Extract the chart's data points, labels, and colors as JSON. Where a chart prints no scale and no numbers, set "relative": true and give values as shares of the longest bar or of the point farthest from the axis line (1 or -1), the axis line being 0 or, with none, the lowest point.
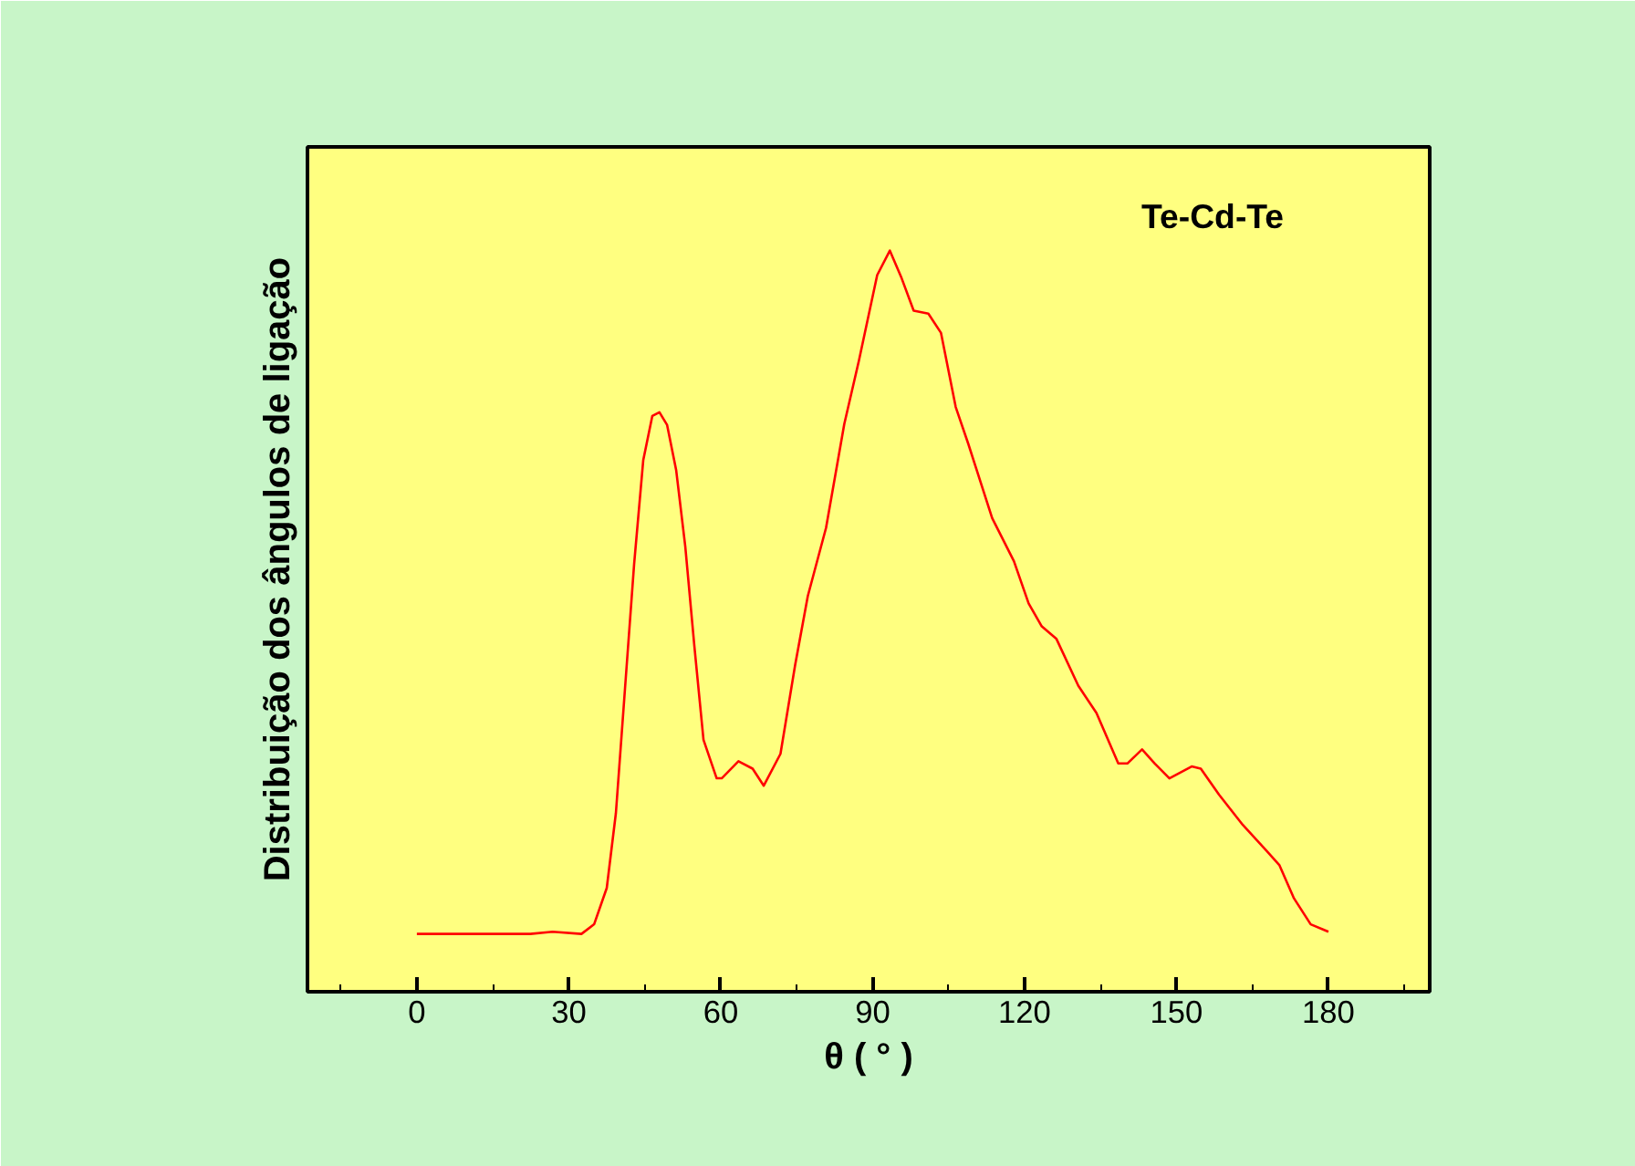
{
  "chart_data": {
    "type": "line",
    "relative": true,
    "xlabel": "θ ( ° )",
    "ylabel": "Distribuição dos ângulos de ligação",
    "annotations": [
      "Te-Cd-Te"
    ],
    "xlim": [
      -21.6,
      200
    ],
    "xticks": [
      0,
      30,
      60,
      90,
      120,
      150,
      180
    ],
    "grid": false,
    "marker": "none",
    "line_style": "solid",
    "series": [
      {
        "color": "#ff0000",
        "x": [
          0,
          22.4,
          26.8,
          32.5,
          35.0,
          37.5,
          39.3,
          41.1,
          42.9,
          44.7,
          46.5,
          47.9,
          49.4,
          51.2,
          53.0,
          54.8,
          56.6,
          59.2,
          60.2,
          63.5,
          66.3,
          68.5,
          71.8,
          74.7,
          77.2,
          80.8,
          84.4,
          87.3,
          90.9,
          93.4,
          95.6,
          98.1,
          101.0,
          103.5,
          106.4,
          108.9,
          113.6,
          117.9,
          120.8,
          123.4,
          126.3,
          130.6,
          134.2,
          138.5,
          140.3,
          143.2,
          145.7,
          148.6,
          153.0,
          154.8,
          158.4,
          163.1,
          167.8,
          170.3,
          173.2,
          176.5,
          180.0
        ],
        "values": [
          0.078,
          0.078,
          0.081,
          0.078,
          0.091,
          0.14,
          0.241,
          0.409,
          0.577,
          0.717,
          0.777,
          0.782,
          0.765,
          0.704,
          0.601,
          0.466,
          0.34,
          0.288,
          0.288,
          0.311,
          0.301,
          0.278,
          0.321,
          0.441,
          0.534,
          0.626,
          0.766,
          0.852,
          0.967,
          1,
          0.965,
          0.919,
          0.915,
          0.889,
          0.789,
          0.739,
          0.639,
          0.581,
          0.524,
          0.493,
          0.476,
          0.413,
          0.376,
          0.308,
          0.308,
          0.327,
          0.308,
          0.288,
          0.304,
          0.301,
          0.266,
          0.225,
          0.19,
          0.171,
          0.126,
          0.091,
          0.081
        ]
      }
    ]
  }
}
